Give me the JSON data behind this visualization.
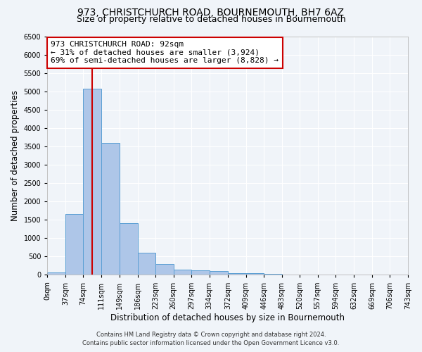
{
  "title": "973, CHRISTCHURCH ROAD, BOURNEMOUTH, BH7 6AZ",
  "subtitle": "Size of property relative to detached houses in Bournemouth",
  "xlabel": "Distribution of detached houses by size in Bournemouth",
  "ylabel": "Number of detached properties",
  "footer_line1": "Contains HM Land Registry data © Crown copyright and database right 2024.",
  "footer_line2": "Contains public sector information licensed under the Open Government Licence v3.0.",
  "bin_edges": [
    0,
    37,
    74,
    111,
    149,
    186,
    223,
    260,
    297,
    334,
    372,
    409,
    446,
    483,
    520,
    557,
    594,
    632,
    669,
    706,
    743
  ],
  "bar_heights": [
    75,
    1650,
    5080,
    3600,
    1400,
    600,
    300,
    150,
    120,
    100,
    50,
    50,
    25,
    10,
    5,
    5,
    3,
    2,
    1,
    1
  ],
  "bar_color": "#aec6e8",
  "bar_edgecolor": "#5a9fd4",
  "property_x": 92,
  "property_line_color": "#cc0000",
  "annotation_line1": "973 CHRISTCHURCH ROAD: 92sqm",
  "annotation_line2": "← 31% of detached houses are smaller (3,924)",
  "annotation_line3": "69% of semi-detached houses are larger (8,828) →",
  "annotation_box_color": "#ffffff",
  "annotation_box_edgecolor": "#cc0000",
  "ylim": [
    0,
    6500
  ],
  "xlim": [
    0,
    743
  ],
  "background_color": "#f0f4f9",
  "grid_color": "#ffffff",
  "title_fontsize": 10,
  "subtitle_fontsize": 9,
  "label_fontsize": 8.5,
  "tick_label_fontsize": 7,
  "annotation_fontsize": 8,
  "footer_fontsize": 6
}
